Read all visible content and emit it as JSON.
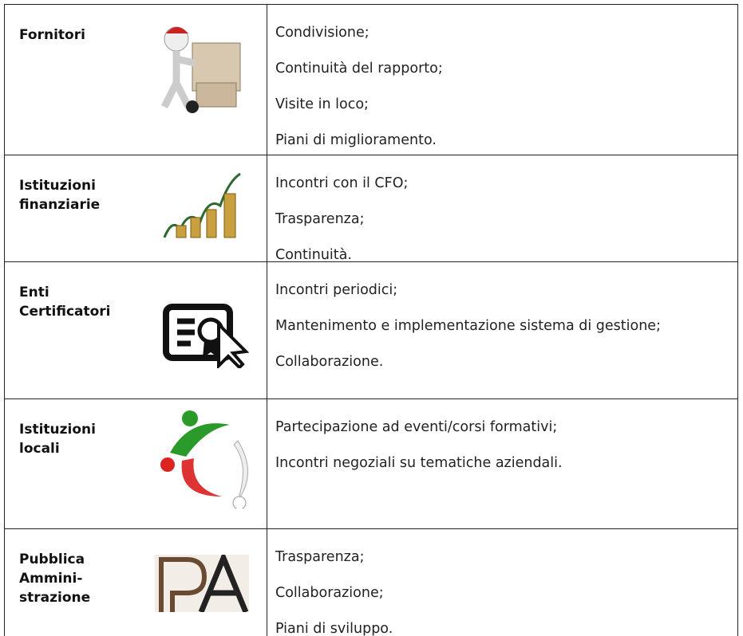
{
  "table": {
    "rows": [
      {
        "label": [
          "Fornitori"
        ],
        "items": [
          "Condivisione;",
          "Continuità del rapporto;",
          "Visite in loco;",
          "Piani di miglioramento."
        ]
      },
      {
        "label": [
          "Istituzioni",
          "finanziarie"
        ],
        "items": [
          "Incontri con il CFO;",
          "Trasparenza;",
          "Continuità."
        ]
      },
      {
        "label": [
          "Enti",
          "Certificatori"
        ],
        "items": [
          "Incontri periodici;",
          "Mantenimento e implementazione sistema di gestione;",
          "Collaborazione."
        ]
      },
      {
        "label": [
          "Istituzioni",
          "locali"
        ],
        "items": [
          "Partecipazione ad eventi/corsi formativi;",
          "Incontri negoziali su tematiche aziendali."
        ]
      },
      {
        "label": [
          "Pubblica",
          "Ammini-",
          "strazione"
        ],
        "items": [
          "Trasparenza;",
          "Collaborazione;",
          "Piani di sviluppo."
        ]
      }
    ]
  }
}
